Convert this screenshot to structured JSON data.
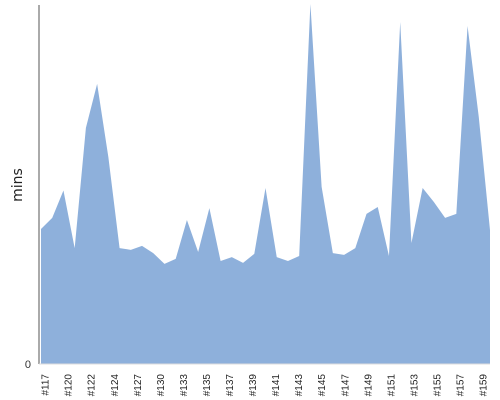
{
  "chart_data": {
    "type": "area",
    "ylabel": "mins",
    "ylim": [
      0,
      100
    ],
    "y_ticks": [
      "0"
    ],
    "color": "#8eb0db",
    "axis_color": "#555555",
    "grid": false,
    "x_tick_labels": [
      "#117",
      "#120",
      "#122",
      "#124",
      "#127",
      "#130",
      "#133",
      "#135",
      "#137",
      "#139",
      "#141",
      "#143",
      "#145",
      "#147",
      "#149",
      "#151",
      "#153",
      "#155",
      "#157",
      "#159"
    ],
    "series": [
      {
        "values": [
          37.5,
          40.6,
          48.2,
          32.2,
          65.6,
          77.8,
          57.5,
          32.2,
          31.7,
          32.8,
          30.8,
          27.8,
          29.2,
          40.0,
          31.1,
          43.3,
          28.6,
          29.7,
          28.1,
          30.6,
          48.9,
          29.7,
          28.6,
          30.0,
          100.0,
          49.2,
          30.8,
          30.3,
          32.2,
          41.7,
          43.6,
          30.0,
          95.0,
          33.6,
          48.9,
          45.0,
          40.6,
          41.7,
          93.9,
          68.6,
          37.2
        ]
      }
    ]
  }
}
